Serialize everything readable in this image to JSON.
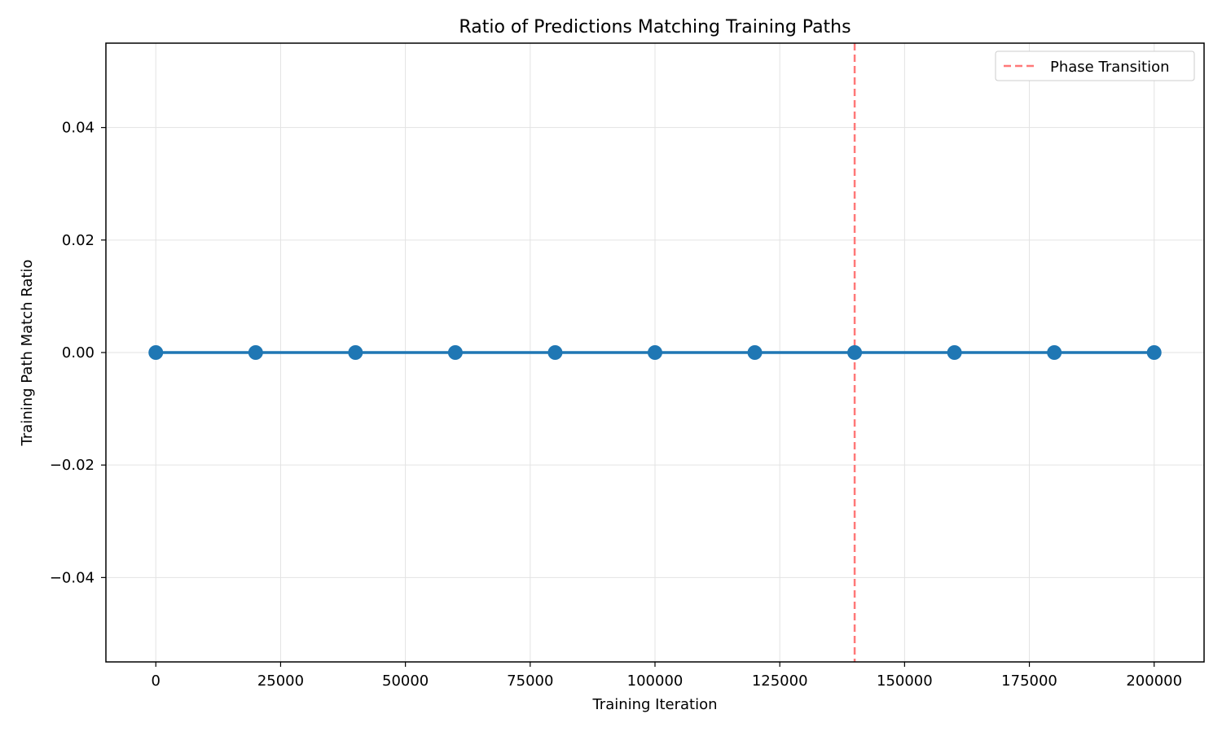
{
  "chart_data": {
    "type": "line",
    "title": "Ratio of Predictions Matching Training Paths",
    "xlabel": "Training Iteration",
    "ylabel": "Training Path Match Ratio",
    "xlim": [
      -10000,
      210000
    ],
    "ylim": [
      -0.055,
      0.055
    ],
    "x_ticks": [
      0,
      25000,
      50000,
      75000,
      100000,
      125000,
      150000,
      175000,
      200000
    ],
    "x_tick_labels": [
      "0",
      "25000",
      "50000",
      "75000",
      "100000",
      "125000",
      "150000",
      "175000",
      "200000"
    ],
    "y_ticks": [
      -0.04,
      -0.02,
      0.0,
      0.02,
      0.04
    ],
    "y_tick_labels": [
      "−0.04",
      "−0.02",
      "0.00",
      "0.02",
      "0.04"
    ],
    "grid": true,
    "legend_position": "top-right",
    "series": [
      {
        "x": [
          0,
          20000,
          40000,
          60000,
          80000,
          100000,
          120000,
          140000,
          160000,
          180000,
          200000
        ],
        "y": [
          0,
          0,
          0,
          0,
          0,
          0,
          0,
          0,
          0,
          0,
          0
        ],
        "color": "#1f77b4",
        "marker": "circle"
      }
    ],
    "vlines": [
      {
        "x": 140000,
        "label": "Phase Transition",
        "color": "#ff7878",
        "style": "dashed"
      }
    ]
  }
}
